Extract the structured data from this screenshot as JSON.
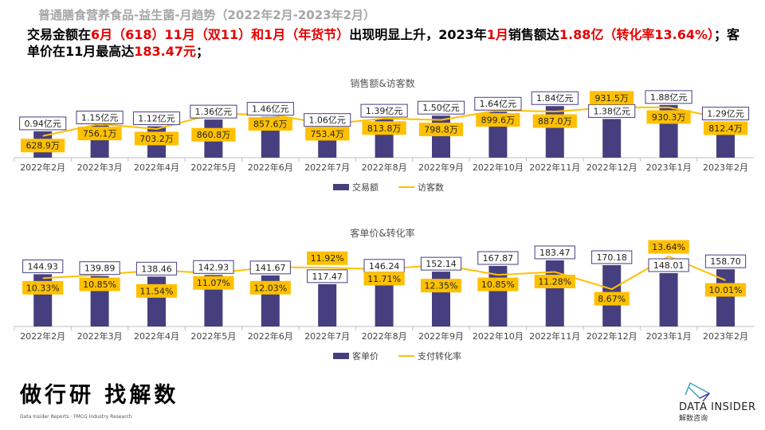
{
  "header": {
    "title": "普通膳食营养食品-益生菌-月趋势（2022年2月-2023年2月）",
    "summary_parts": [
      {
        "text": "交易金额在",
        "red": false
      },
      {
        "text": "6月（618）11月（双11）和1月（年货节）",
        "red": true
      },
      {
        "text": "出现明显上升，2023年",
        "red": false
      },
      {
        "text": "1月",
        "red": true
      },
      {
        "text": "销售额达",
        "red": false
      },
      {
        "text": "1.88亿（转化率13.64%）",
        "red": true
      },
      {
        "text": "；客单价在11月最高达",
        "red": false
      },
      {
        "text": "183.47元",
        "red": true
      },
      {
        "text": "；",
        "red": false
      }
    ]
  },
  "chart_data": [
    {
      "type": "bar+line",
      "title": "销售额&访客数",
      "categories": [
        "2022年2月",
        "2022年3月",
        "2022年4月",
        "2022年5月",
        "2022年6月",
        "2022年7月",
        "2022年8月",
        "2022年9月",
        "2022年10月",
        "2022年11月",
        "2022年12月",
        "2023年1月",
        "2023年2月"
      ],
      "series": [
        {
          "name": "交易额",
          "kind": "bar",
          "color": "#453f7f",
          "values": [
            0.94,
            1.15,
            1.12,
            1.36,
            1.46,
            1.06,
            1.39,
            1.5,
            1.64,
            1.84,
            1.38,
            1.88,
            1.29
          ],
          "labels": [
            "0.94亿元",
            "1.15亿元",
            "1.12亿元",
            "1.36亿元",
            "1.46亿元",
            "1.06亿元",
            "1.39亿元",
            "1.50亿元",
            "1.64亿元",
            "1.84亿元",
            "1.38亿元",
            "1.88亿元",
            "1.29亿元"
          ]
        },
        {
          "name": "访客数",
          "kind": "line",
          "color": "#ffc000",
          "values": [
            628.9,
            756.1,
            703.2,
            860.8,
            857.6,
            753.4,
            813.8,
            798.8,
            899.6,
            887.0,
            931.5,
            930.3,
            812.4
          ],
          "labels": [
            "628.9万",
            "756.1万",
            "703.2万",
            "860.8万",
            "857.6万",
            "753.4万",
            "813.8万",
            "798.8万",
            "899.6万",
            "887.0万",
            "931.5万",
            "930.3万",
            "812.4万"
          ]
        }
      ],
      "bar_ylim": [
        0,
        2.5
      ],
      "line_ylim": [
        400,
        1140
      ],
      "legend": "bottom",
      "grid": false
    },
    {
      "type": "bar+line",
      "title": "客单价&转化率",
      "categories": [
        "2022年2月",
        "2022年3月",
        "2022年4月",
        "2022年5月",
        "2022年6月",
        "2022年7月",
        "2022年8月",
        "2022年9月",
        "2022年10月",
        "2022年11月",
        "2022年12月",
        "2023年1月",
        "2023年2月"
      ],
      "series": [
        {
          "name": "客单价",
          "kind": "bar",
          "color": "#453f7f",
          "values": [
            144.93,
            139.89,
            138.46,
            142.93,
            141.67,
            117.47,
            146.24,
            152.14,
            167.87,
            183.47,
            170.18,
            148.01,
            158.7
          ],
          "labels": [
            "144.93",
            "139.89",
            "138.46",
            "142.93",
            "141.67",
            "117.47",
            "146.24",
            "152.14",
            "167.87",
            "183.47",
            "170.18",
            "148.01",
            "158.70"
          ]
        },
        {
          "name": "支付转化率",
          "kind": "line",
          "color": "#ffc000",
          "values": [
            10.33,
            10.85,
            11.54,
            11.07,
            12.03,
            11.92,
            11.71,
            12.35,
            10.85,
            11.28,
            8.67,
            13.64,
            10.01
          ],
          "labels": [
            "10.33%",
            "10.85%",
            "11.54%",
            "11.07%",
            "12.03%",
            "11.92%",
            "11.71%",
            "12.35%",
            "10.85%",
            "11.28%",
            "8.67%",
            "13.64%",
            "10.01%"
          ]
        }
      ],
      "bar_ylim": [
        0,
        243
      ],
      "line_ylim": [
        3,
        16.3
      ],
      "legend": "bottom",
      "grid": false
    }
  ],
  "footer": {
    "brand": "做行研 找解数",
    "brand_sub": "Data Insider Reports · FMCG Industry Research",
    "logo_text": "DATA INSIDER",
    "logo_cn": "解数咨询"
  }
}
